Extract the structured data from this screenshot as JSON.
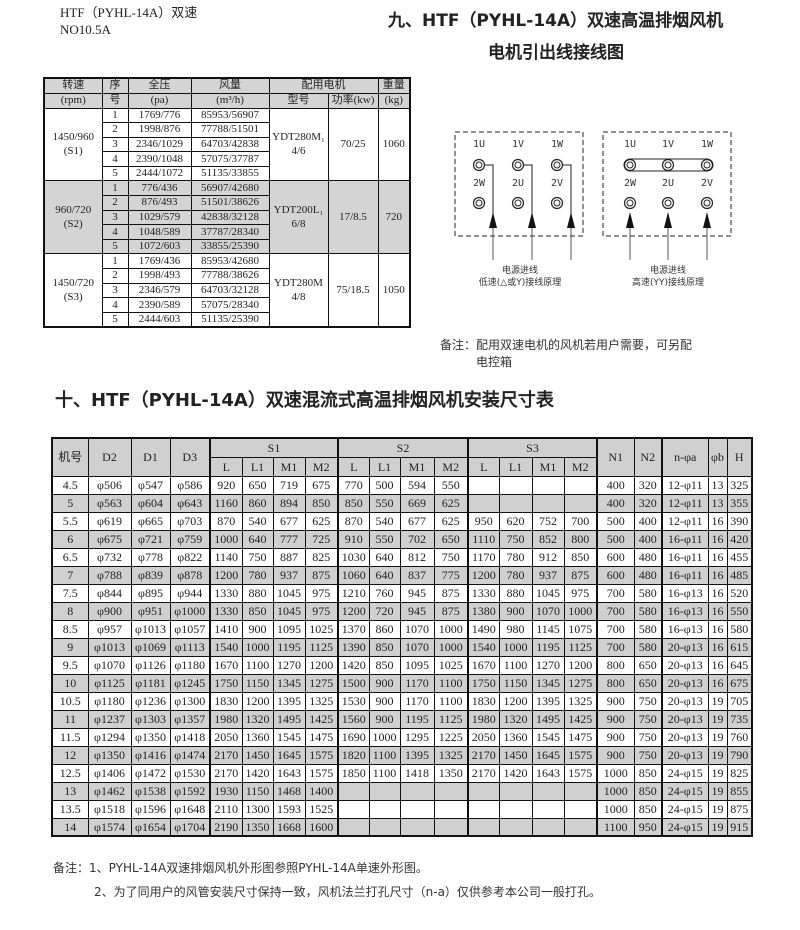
{
  "header": {
    "model_line1": "HTF（PYHL-14A）双速",
    "model_line2": "NO10.5A",
    "title_line1": "九、HTF（PYHL-14A）双速高温排烟风机",
    "title_line2": "电机引出线接线图"
  },
  "perf_table": {
    "headers": {
      "speed": "转速",
      "speed_unit": "(rpm)",
      "seq": "序",
      "seq2": "号",
      "pressure": "全压",
      "pressure_unit": "(pa)",
      "flow": "风量",
      "flow_unit": "(m³/h)",
      "motor": "配用电机",
      "motor_model": "型号",
      "motor_power": "功率(kw)",
      "weight": "重量",
      "weight_unit": "(kg)"
    },
    "groups": [
      {
        "speed": "1450/960",
        "label": "(S1)",
        "motor_model": "YDT280M₁",
        "poles": "4/6",
        "power": "70/25",
        "weight": "1060",
        "rows": [
          [
            "1",
            "1769/776",
            "85953/56907"
          ],
          [
            "2",
            "1998/876",
            "77788/51501"
          ],
          [
            "3",
            "2346/1029",
            "64703/42838"
          ],
          [
            "4",
            "2390/1048",
            "57075/37787"
          ],
          [
            "5",
            "2444/1072",
            "51135/33855"
          ]
        ]
      },
      {
        "speed": "960/720",
        "label": "(S2)",
        "motor_model": "YDT200L₁",
        "poles": "6/8",
        "power": "17/8.5",
        "weight": "720",
        "rows": [
          [
            "1",
            "776/436",
            "56907/42680"
          ],
          [
            "2",
            "876/493",
            "51501/38626"
          ],
          [
            "3",
            "1029/579",
            "42838/32128"
          ],
          [
            "4",
            "1048/589",
            "37787/28340"
          ],
          [
            "5",
            "1072/603",
            "33855/25390"
          ]
        ]
      },
      {
        "speed": "1450/720",
        "label": "(S3)",
        "motor_model": "YDT280M",
        "poles": "4/8",
        "power": "75/18.5",
        "weight": "1050",
        "rows": [
          [
            "1",
            "1769/436",
            "85953/42680"
          ],
          [
            "2",
            "1998/493",
            "77788/38626"
          ],
          [
            "3",
            "2346/579",
            "64703/32128"
          ],
          [
            "4",
            "2390/589",
            "57075/28340"
          ],
          [
            "5",
            "2444/603",
            "51135/25390"
          ]
        ]
      }
    ]
  },
  "wiring": {
    "top_terminals": [
      "1U",
      "1V",
      "1W"
    ],
    "bottom_terminals": [
      "2W",
      "2U",
      "2V"
    ],
    "low_caption1": "电源进线",
    "low_caption2": "低速(△或Y)接线原理",
    "high_caption1": "电源进线",
    "high_caption2": "高速(YY)接线原理",
    "note_line1": "备注：配用双速电机的风机若用户需要，可另配",
    "note_line2": "电控箱"
  },
  "section_title": "十、HTF（PYHL-14A）双速混流式高温排烟风机安装尺寸表",
  "dim_table": {
    "headers": [
      "机号",
      "D2",
      "D1",
      "D3",
      "N1",
      "N2",
      "n-φa",
      "φb",
      "H"
    ],
    "groups": [
      "S1",
      "S2",
      "S3"
    ],
    "sub": [
      "L",
      "L1",
      "M1",
      "M2"
    ],
    "rows": [
      [
        "4.5",
        "φ506",
        "φ547",
        "φ586",
        "920",
        "650",
        "719",
        "675",
        "770",
        "500",
        "594",
        "550",
        "",
        "",
        "",
        "",
        "400",
        "320",
        "12-φ11",
        "13",
        "325"
      ],
      [
        "5",
        "φ563",
        "φ604",
        "φ643",
        "1160",
        "860",
        "894",
        "850",
        "850",
        "550",
        "669",
        "625",
        "",
        "",
        "",
        "",
        "400",
        "320",
        "12-φ11",
        "13",
        "355"
      ],
      [
        "5.5",
        "φ619",
        "φ665",
        "φ703",
        "870",
        "540",
        "677",
        "625",
        "870",
        "540",
        "677",
        "625",
        "950",
        "620",
        "752",
        "700",
        "500",
        "400",
        "12-φ11",
        "16",
        "390"
      ],
      [
        "6",
        "φ675",
        "φ721",
        "φ759",
        "1000",
        "640",
        "777",
        "725",
        "910",
        "550",
        "702",
        "650",
        "1110",
        "750",
        "852",
        "800",
        "500",
        "400",
        "16-φ11",
        "16",
        "420"
      ],
      [
        "6.5",
        "φ732",
        "φ778",
        "φ822",
        "1140",
        "750",
        "887",
        "825",
        "1030",
        "640",
        "812",
        "750",
        "1170",
        "780",
        "912",
        "850",
        "600",
        "480",
        "16-φ11",
        "16",
        "455"
      ],
      [
        "7",
        "φ788",
        "φ839",
        "φ878",
        "1200",
        "780",
        "937",
        "875",
        "1060",
        "640",
        "837",
        "775",
        "1200",
        "780",
        "937",
        "875",
        "600",
        "480",
        "16-φ11",
        "16",
        "485"
      ],
      [
        "7.5",
        "φ844",
        "φ895",
        "φ944",
        "1330",
        "880",
        "1045",
        "975",
        "1210",
        "760",
        "945",
        "875",
        "1330",
        "880",
        "1045",
        "975",
        "700",
        "580",
        "16-φ13",
        "16",
        "520"
      ],
      [
        "8",
        "φ900",
        "φ951",
        "φ1000",
        "1330",
        "850",
        "1045",
        "975",
        "1200",
        "720",
        "945",
        "875",
        "1380",
        "900",
        "1070",
        "1000",
        "700",
        "580",
        "16-φ13",
        "16",
        "550"
      ],
      [
        "8.5",
        "φ957",
        "φ1013",
        "φ1057",
        "1410",
        "900",
        "1095",
        "1025",
        "1370",
        "860",
        "1070",
        "1000",
        "1490",
        "980",
        "1145",
        "1075",
        "700",
        "580",
        "16-φ13",
        "16",
        "580"
      ],
      [
        "9",
        "φ1013",
        "φ1069",
        "φ1113",
        "1540",
        "1000",
        "1195",
        "1125",
        "1390",
        "850",
        "1070",
        "1000",
        "1540",
        "1000",
        "1195",
        "1125",
        "700",
        "580",
        "20-φ13",
        "16",
        "615"
      ],
      [
        "9.5",
        "φ1070",
        "φ1126",
        "φ1180",
        "1670",
        "1100",
        "1270",
        "1200",
        "1420",
        "850",
        "1095",
        "1025",
        "1670",
        "1100",
        "1270",
        "1200",
        "800",
        "650",
        "20-φ13",
        "16",
        "645"
      ],
      [
        "10",
        "φ1125",
        "φ1181",
        "φ1245",
        "1750",
        "1150",
        "1345",
        "1275",
        "1500",
        "900",
        "1170",
        "1100",
        "1750",
        "1150",
        "1345",
        "1275",
        "800",
        "650",
        "20-φ13",
        "16",
        "675"
      ],
      [
        "10.5",
        "φ1180",
        "φ1236",
        "φ1300",
        "1830",
        "1200",
        "1395",
        "1325",
        "1530",
        "900",
        "1170",
        "1100",
        "1830",
        "1200",
        "1395",
        "1325",
        "900",
        "750",
        "20-φ13",
        "19",
        "705"
      ],
      [
        "11",
        "φ1237",
        "φ1303",
        "φ1357",
        "1980",
        "1320",
        "1495",
        "1425",
        "1560",
        "900",
        "1195",
        "1125",
        "1980",
        "1320",
        "1495",
        "1425",
        "900",
        "750",
        "20-φ13",
        "19",
        "735"
      ],
      [
        "11.5",
        "φ1294",
        "φ1350",
        "φ1418",
        "2050",
        "1360",
        "1545",
        "1475",
        "1690",
        "1000",
        "1295",
        "1225",
        "2050",
        "1360",
        "1545",
        "1475",
        "900",
        "750",
        "20-φ13",
        "19",
        "760"
      ],
      [
        "12",
        "φ1350",
        "φ1416",
        "φ1474",
        "2170",
        "1450",
        "1645",
        "1575",
        "1820",
        "1100",
        "1395",
        "1325",
        "2170",
        "1450",
        "1645",
        "1575",
        "900",
        "750",
        "20-φ13",
        "19",
        "790"
      ],
      [
        "12.5",
        "φ1406",
        "φ1472",
        "φ1530",
        "2170",
        "1420",
        "1643",
        "1575",
        "1850",
        "1100",
        "1418",
        "1350",
        "2170",
        "1420",
        "1643",
        "1575",
        "1000",
        "850",
        "24-φ15",
        "19",
        "825"
      ],
      [
        "13",
        "φ1462",
        "φ1538",
        "φ1592",
        "1930",
        "1150",
        "1468",
        "1400",
        "",
        "",
        "",
        "",
        "",
        "",
        "",
        "",
        "1000",
        "850",
        "24-φ15",
        "19",
        "855"
      ],
      [
        "13.5",
        "φ1518",
        "φ1596",
        "φ1648",
        "2110",
        "1300",
        "1593",
        "1525",
        "",
        "",
        "",
        "",
        "",
        "",
        "",
        "",
        "1000",
        "850",
        "24-φ15",
        "19",
        "875"
      ],
      [
        "14",
        "φ1574",
        "φ1654",
        "φ1704",
        "2190",
        "1350",
        "1668",
        "1600",
        "",
        "",
        "",
        "",
        "",
        "",
        "",
        "",
        "1100",
        "950",
        "24-φ15",
        "19",
        "915"
      ]
    ]
  },
  "notes": {
    "line1": "备注：1、PYHL-14A双速排烟风机外形图参照PYHL-14A单速外形图。",
    "line2": "2、为了同用户的风管安装尺寸保持一致，风机法兰打孔尺寸（n-a）仅供参考本公司一般打孔。"
  }
}
